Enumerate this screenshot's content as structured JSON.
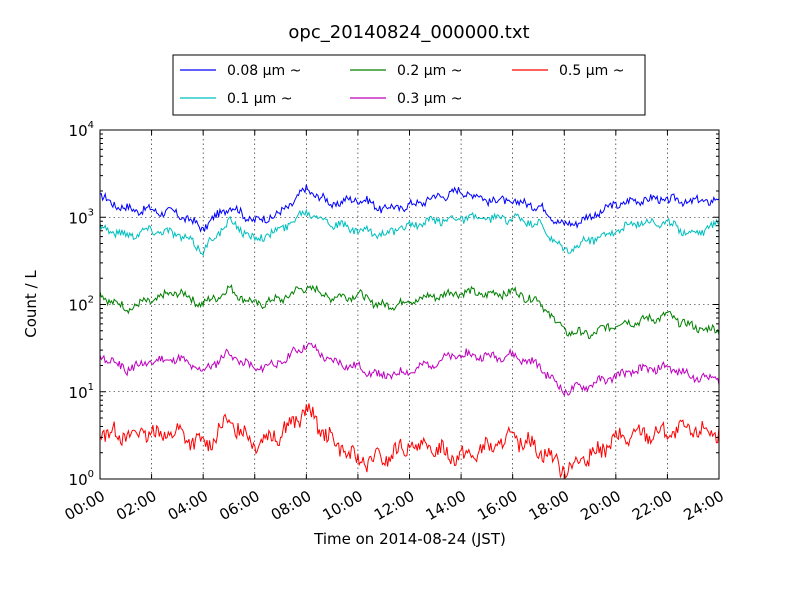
{
  "chart_data": {
    "type": "line",
    "title": "opc_20140824_000000.txt",
    "xlabel": "Time on 2014-08-24 (JST)",
    "ylabel": "Count / L",
    "x_ticks": [
      "00:00",
      "02:00",
      "04:00",
      "06:00",
      "08:00",
      "10:00",
      "12:00",
      "14:00",
      "16:00",
      "18:00",
      "20:00",
      "22:00",
      "24:00"
    ],
    "y_ticks": [
      {
        "base": "10",
        "exp": "0"
      },
      {
        "base": "10",
        "exp": "1"
      },
      {
        "base": "10",
        "exp": "2"
      },
      {
        "base": "10",
        "exp": "3"
      },
      {
        "base": "10",
        "exp": "4"
      }
    ],
    "y_scale": "log",
    "ylim": [
      1,
      10000
    ],
    "xlim": [
      "00:00",
      "24:00"
    ],
    "grid": true,
    "legend_position": "top-center",
    "x_unit": "hours",
    "series": [
      {
        "name": "0.08 μm ~",
        "color": "#0000ff",
        "x": [
          0,
          1,
          2,
          3,
          4,
          5,
          6,
          7,
          8,
          9,
          10,
          11,
          12,
          13,
          14,
          15,
          16,
          17,
          18,
          19,
          20,
          21,
          22,
          23,
          24
        ],
        "values": [
          1700,
          1250,
          1200,
          1100,
          750,
          1350,
          900,
          1100,
          2100,
          1400,
          1650,
          1250,
          1350,
          1700,
          2000,
          1600,
          1500,
          1350,
          800,
          1000,
          1400,
          1600,
          1600,
          1500,
          1600
        ]
      },
      {
        "name": "0.1 μm ~",
        "color": "#00bfbf",
        "x": [
          0,
          1,
          2,
          3,
          4,
          5,
          6,
          7,
          8,
          9,
          10,
          11,
          12,
          13,
          14,
          15,
          16,
          17,
          18,
          19,
          20,
          21,
          22,
          23,
          24
        ],
        "values": [
          780,
          620,
          720,
          650,
          420,
          900,
          560,
          720,
          1200,
          850,
          700,
          640,
          800,
          900,
          1000,
          950,
          980,
          830,
          400,
          550,
          700,
          900,
          850,
          650,
          850
        ]
      },
      {
        "name": "0.2 μm ~",
        "color": "#008000",
        "x": [
          0,
          1,
          2,
          3,
          4,
          5,
          6,
          7,
          8,
          9,
          10,
          11,
          12,
          13,
          14,
          15,
          16,
          17,
          18,
          19,
          20,
          21,
          22,
          23,
          24
        ],
        "values": [
          130,
          90,
          110,
          140,
          100,
          150,
          100,
          115,
          160,
          120,
          130,
          95,
          110,
          125,
          140,
          130,
          140,
          110,
          50,
          45,
          60,
          65,
          75,
          55,
          50
        ]
      },
      {
        "name": "0.3 μm ~",
        "color": "#bf00bf",
        "x": [
          0,
          1,
          2,
          3,
          4,
          5,
          6,
          7,
          8,
          9,
          10,
          11,
          12,
          13,
          14,
          15,
          16,
          17,
          18,
          19,
          20,
          21,
          22,
          23,
          24
        ],
        "values": [
          26,
          18,
          22,
          24,
          17,
          28,
          18,
          22,
          35,
          22,
          19,
          15,
          17,
          22,
          27,
          25,
          26,
          20,
          10,
          12,
          15,
          18,
          19,
          15,
          14
        ]
      },
      {
        "name": "0.5 μm ~",
        "color": "#ff0000",
        "x": [
          0,
          1,
          2,
          3,
          4,
          5,
          6,
          7,
          8,
          9,
          10,
          11,
          12,
          13,
          14,
          15,
          16,
          17,
          18,
          19,
          20,
          21,
          22,
          23,
          24
        ],
        "values": [
          3.6,
          3.2,
          3.3,
          3.4,
          2.4,
          4.5,
          2.7,
          3.3,
          6.0,
          2.8,
          1.6,
          1.7,
          2.4,
          2.2,
          1.8,
          2.2,
          3.0,
          2.3,
          1.3,
          1.8,
          2.8,
          3.3,
          3.4,
          3.6,
          3.5
        ]
      }
    ]
  }
}
